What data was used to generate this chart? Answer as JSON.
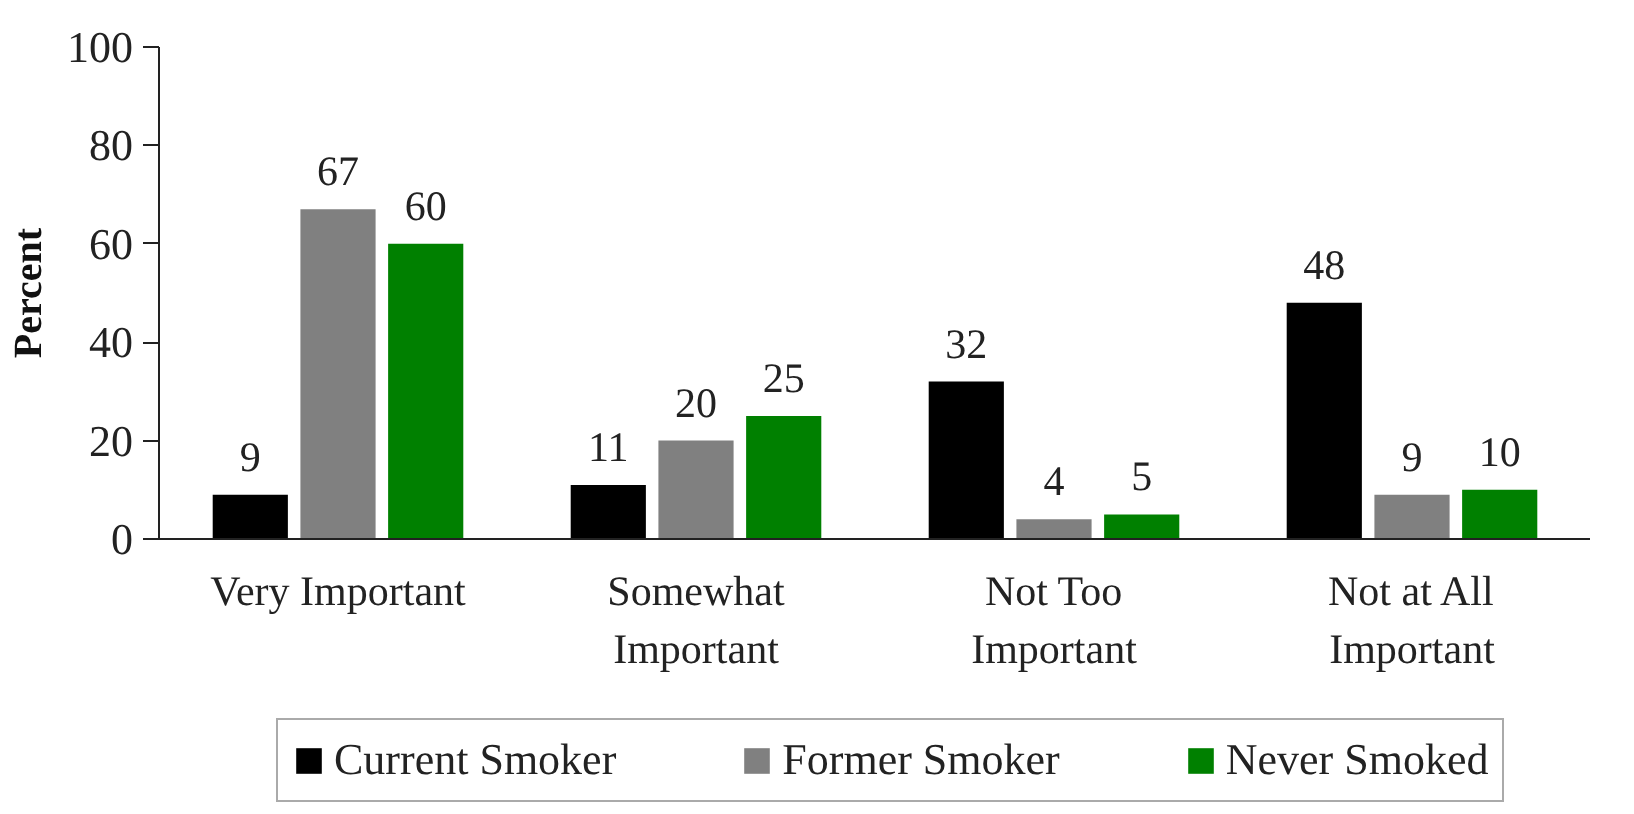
{
  "chart_data": {
    "type": "bar",
    "ylabel": "Percent",
    "categories": [
      "Very Important",
      "Somewhat Important",
      "Not Too Important",
      "Not at All Important"
    ],
    "series": [
      {
        "name": "Current Smoker",
        "color": "#000000",
        "values": [
          9,
          11,
          32,
          48
        ]
      },
      {
        "name": "Former Smoker",
        "color": "#808080",
        "values": [
          67,
          20,
          4,
          9
        ]
      },
      {
        "name": "Never Smoked",
        "color": "#008000",
        "values": [
          60,
          25,
          5,
          10
        ]
      }
    ],
    "ylim": [
      0,
      100
    ],
    "yticks": [
      0,
      20,
      40,
      60,
      80,
      100
    ],
    "grid": false,
    "legend": "bottom",
    "data_labels": true
  }
}
